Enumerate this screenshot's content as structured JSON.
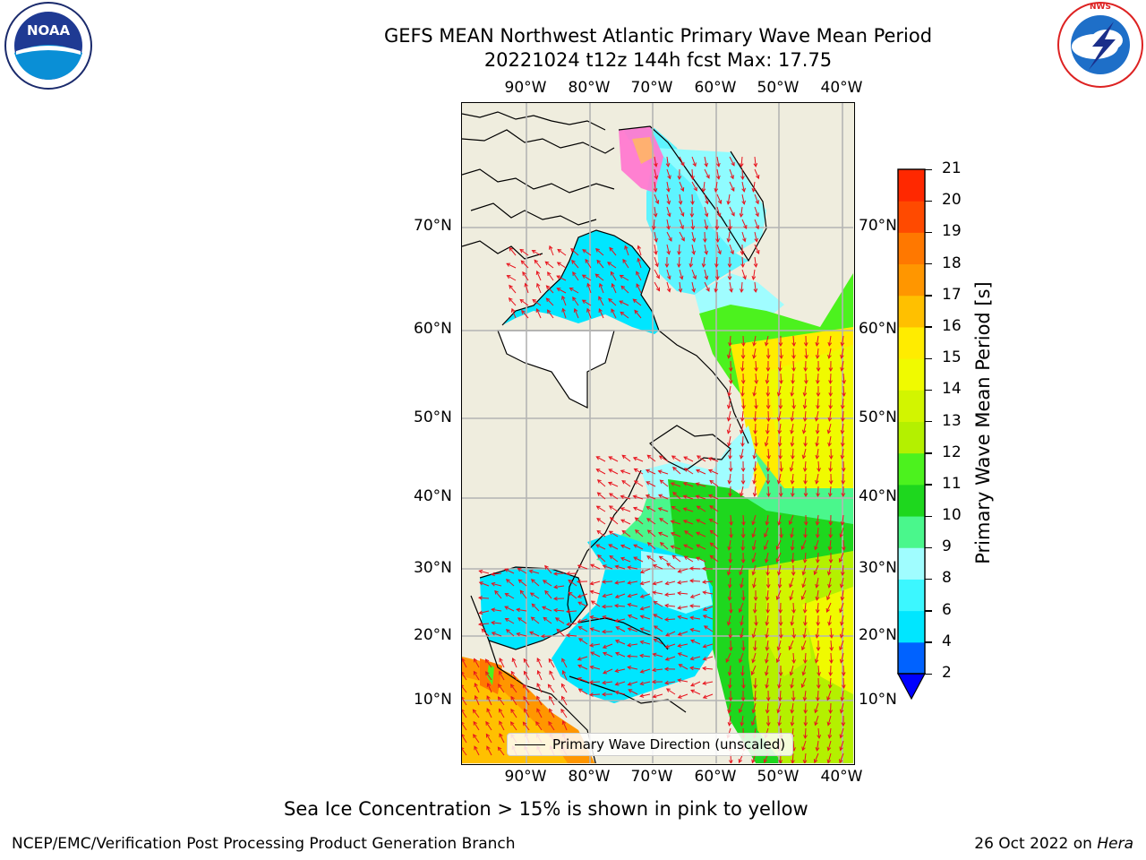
{
  "header": {
    "title_line1": "GEFS MEAN Northwest Atlantic Primary Wave Mean Period",
    "title_line2": "20221024 t12z 144h fcst   Max: 17.75"
  },
  "logos": {
    "noaa_text": "NOAA",
    "noaa_ring": "NATIONAL OCEANIC AND ATMOSPHERIC ADMINISTRATION · U.S. DEPARTMENT OF COMMERCE",
    "nws_ring": "NATIONAL WEATHER SERVICE"
  },
  "map": {
    "lon_labels": [
      "90°W",
      "80°W",
      "70°W",
      "60°W",
      "50°W",
      "40°W"
    ],
    "lat_labels": [
      "70°N",
      "60°N",
      "50°N",
      "40°N",
      "30°N",
      "20°N",
      "10°N"
    ],
    "legend_label": "Primary Wave Direction (unscaled)",
    "arrow_color": "#e8141e",
    "land_color": "#efedde",
    "grid_color": "#b4b4b4"
  },
  "colorbar": {
    "label": "Primary Wave Mean Period [s]",
    "ticks": [
      "2",
      "4",
      "6",
      "8",
      "9",
      "10",
      "11",
      "12",
      "13",
      "14",
      "15",
      "16",
      "17",
      "18",
      "19",
      "20",
      "21"
    ],
    "colors": [
      "#0062ff",
      "#00e6ff",
      "#3cf7ff",
      "#a0fdff",
      "#4af78c",
      "#1ed71e",
      "#4cf21e",
      "#b4f000",
      "#d2f500",
      "#f0fa00",
      "#ffec00",
      "#ffc000",
      "#ff9600",
      "#ff7800",
      "#ff4a00",
      "#ff2800"
    ],
    "extend_color": "#0000ff"
  },
  "footer": {
    "caption": "Sea Ice Concentration > 15% is shown in pink to yellow",
    "left": "NCEP/EMC/Verification Post Processing Product Generation Branch",
    "right_prefix": "26 Oct 2022 on ",
    "right_machine": "Hera"
  }
}
